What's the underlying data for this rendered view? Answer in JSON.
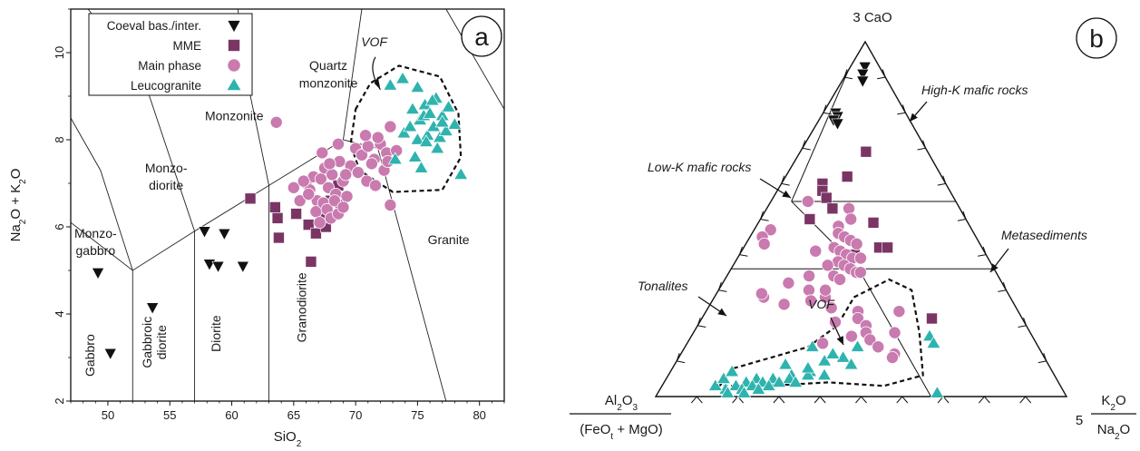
{
  "chart_data": [
    {
      "type": "scatter",
      "panel_label": "a",
      "xlabel_main": "SiO",
      "xlabel_sub": "2",
      "ylabel_parts": [
        "Na",
        "2",
        "O + K",
        "2",
        "O"
      ],
      "xlim": [
        47,
        82
      ],
      "ylim": [
        2,
        11
      ],
      "xticks": [
        50,
        55,
        60,
        65,
        70,
        75,
        80
      ],
      "yticks": [
        2,
        4,
        6,
        8,
        10
      ],
      "legend_position": "top-left",
      "legend": [
        {
          "name": "Coeval bas./inter.",
          "marker": "triangle-down"
        },
        {
          "name": "MME",
          "marker": "square"
        },
        {
          "name": "Main phase",
          "marker": "circle"
        },
        {
          "name": "Leucogranite",
          "marker": "triangle-up"
        }
      ],
      "colors": {
        "Coeval bas./inter.": "#111111",
        "MME": "#7a3565",
        "Main phase": "#c97aaf",
        "Leucogranite": "#2fb3ae"
      },
      "field_labels": [
        {
          "text": "Monzonite",
          "x": 60.2,
          "y": 8.45
        },
        {
          "text": "Quartz",
          "x": 67.8,
          "y": 9.6
        },
        {
          "text": "monzonite",
          "x": 67.8,
          "y": 9.2
        },
        {
          "text": "Monzo-",
          "x": 54.7,
          "y": 7.25
        },
        {
          "text": "diorite",
          "x": 54.7,
          "y": 6.85
        },
        {
          "text": "Monzo-",
          "x": 49.0,
          "y": 5.75
        },
        {
          "text": "gabbro",
          "x": 49.0,
          "y": 5.35
        },
        {
          "text": "Granite",
          "x": 77.5,
          "y": 5.6
        },
        {
          "text": "VOF",
          "x": 71.5,
          "y": 10.15,
          "italic": true
        }
      ],
      "rotated_labels": [
        {
          "text": "Gabbro",
          "x": 48.9,
          "y": 3.05
        },
        {
          "text": "Gabbroic",
          "x": 53.5,
          "y": 3.35
        },
        {
          "text": "diorite",
          "x": 54.7,
          "y": 3.35
        },
        {
          "text": "Diorite",
          "x": 59.1,
          "y": 3.55
        },
        {
          "text": "Granodiorite",
          "x": 66.0,
          "y": 4.15
        }
      ],
      "field_boundaries": [
        [
          [
            47,
            6.1
          ],
          [
            52,
            5.0
          ],
          [
            57,
            5.9
          ],
          [
            63,
            6.95
          ],
          [
            69,
            8.0
          ]
        ],
        [
          [
            52,
            2
          ],
          [
            52,
            5.0
          ]
        ],
        [
          [
            57,
            2
          ],
          [
            57,
            5.9
          ]
        ],
        [
          [
            63,
            2
          ],
          [
            63,
            6.95
          ]
        ],
        [
          [
            52,
            5.0
          ],
          [
            49.4,
            7.3
          ],
          [
            47,
            8.5
          ]
        ],
        [
          [
            57,
            5.9
          ],
          [
            53,
            9.3
          ],
          [
            48.4,
            11
          ]
        ],
        [
          [
            63,
            6.95
          ],
          [
            61,
            9.7
          ],
          [
            60.5,
            11
          ]
        ],
        [
          [
            69,
            8.0
          ],
          [
            70.5,
            11
          ]
        ],
        [
          [
            69,
            8.0
          ],
          [
            71.8,
            7.8
          ],
          [
            77.3,
            2
          ]
        ],
        [
          [
            77.3,
            11
          ],
          [
            82,
            8.7
          ]
        ]
      ],
      "series": [
        {
          "name": "Coeval bas./inter.",
          "marker": "triangle-down",
          "x": [
            49.2,
            50.2,
            53.6,
            57.8,
            58.2,
            58.9,
            59.4,
            60.9
          ],
          "y": [
            4.95,
            3.1,
            4.15,
            5.9,
            5.15,
            5.1,
            5.85,
            5.1
          ]
        },
        {
          "name": "MME",
          "marker": "square",
          "x": [
            61.5,
            63.5,
            63.7,
            63.8,
            65.2,
            66.2,
            66.4,
            66.8,
            67.3,
            67.6,
            68.0,
            68.6,
            68.8,
            67.0
          ],
          "y": [
            6.65,
            6.45,
            6.2,
            5.75,
            6.3,
            6.05,
            5.2,
            5.85,
            6.3,
            6.0,
            6.6,
            6.95,
            6.5,
            6.5
          ]
        },
        {
          "name": "Main phase",
          "marker": "circle",
          "x": [
            63.6,
            65.0,
            65.5,
            66.0,
            66.3,
            66.6,
            66.9,
            67.2,
            67.5,
            67.8,
            68.1,
            68.4,
            68.7,
            69.0,
            69.3,
            66.8,
            67.1,
            67.4,
            67.7,
            68.0,
            68.3,
            68.6,
            69.0,
            69.6,
            70.0,
            70.5,
            71.0,
            71.5,
            72.0,
            72.5,
            70.2,
            70.8,
            71.3,
            71.8,
            72.3,
            72.8,
            73.3,
            70.9,
            71.6,
            72.6,
            67.3,
            67.9,
            68.6,
            69.2,
            66.2,
            65.8,
            72.8
          ],
          "y": [
            8.4,
            6.9,
            6.6,
            7.0,
            6.85,
            7.15,
            6.6,
            7.1,
            7.35,
            6.9,
            7.2,
            6.75,
            7.5,
            7.05,
            6.7,
            6.35,
            6.1,
            6.55,
            6.4,
            6.2,
            6.6,
            6.3,
            6.45,
            7.4,
            7.8,
            7.65,
            7.85,
            7.55,
            7.9,
            7.7,
            7.25,
            8.1,
            7.45,
            8.05,
            7.3,
            8.3,
            7.75,
            7.05,
            6.95,
            7.5,
            7.7,
            7.45,
            7.9,
            7.2,
            6.75,
            7.05,
            6.5
          ]
        },
        {
          "name": "Leucogranite",
          "marker": "triangle-up",
          "x": [
            73.8,
            75.0,
            75.6,
            76.0,
            76.5,
            77.0,
            77.5,
            78.0,
            75.2,
            75.8,
            76.3,
            76.8,
            77.3,
            74.6,
            75.5,
            76.2,
            77.0,
            73.9,
            74.4,
            75.0,
            75.7,
            76.6,
            74.8,
            75.3,
            78.5,
            73.2,
            72.8,
            76.0
          ],
          "y": [
            9.4,
            9.2,
            8.8,
            8.6,
            8.95,
            8.55,
            8.75,
            8.35,
            8.45,
            8.1,
            8.3,
            8.05,
            8.2,
            8.7,
            8.55,
            8.9,
            8.4,
            8.15,
            8.3,
            8.0,
            7.95,
            7.8,
            7.6,
            7.35,
            7.2,
            7.55,
            9.25,
            8.6
          ]
        }
      ]
    },
    {
      "type": "ternary-scatter",
      "panel_label": "b",
      "apex_top": "3 CaO",
      "apex_right_prefix": "5",
      "apex_right_num": "K",
      "apex_right_num_sub": "2",
      "apex_right_num_tail": "O",
      "apex_right_den": "Na",
      "apex_right_den_sub": "2",
      "apex_right_den_tail": "O",
      "apex_left_num": "Al",
      "apex_left_num_sub1": "2",
      "apex_left_num_mid": "O",
      "apex_left_num_sub2": "3",
      "apex_left_den": "(FeO",
      "apex_left_den_sub": "t",
      "apex_left_den_tail": " + MgO)",
      "field_labels": [
        {
          "text": "High-K mafic rocks",
          "italic": true
        },
        {
          "text": "Low-K mafic rocks",
          "italic": true
        },
        {
          "text": "Metasediments",
          "italic": true
        },
        {
          "text": "Tonalites",
          "italic": true
        },
        {
          "text": "VOF",
          "italic": true
        }
      ],
      "series": [
        {
          "name": "Coeval bas./inter.",
          "marker": "triangle-down",
          "CaO": [
            0.93,
            0.91,
            0.89,
            0.8,
            0.79,
            0.78,
            0.77
          ],
          "K": [
            0.035,
            0.04,
            0.05,
            0.03,
            0.04,
            0.035,
            0.05
          ]
        },
        {
          "name": "MME",
          "marker": "square",
          "CaO": [
            0.69,
            0.62,
            0.6,
            0.58,
            0.56,
            0.53,
            0.5,
            0.49,
            0.42,
            0.42,
            0.4,
            0.22
          ],
          "K": [
            0.16,
            0.15,
            0.1,
            0.11,
            0.13,
            0.16,
            0.12,
            0.28,
            0.33,
            0.35,
            0.28,
            0.56
          ]
        },
        {
          "name": "Main phase",
          "marker": "circle",
          "CaO": [
            0.55,
            0.53,
            0.5,
            0.48,
            0.46,
            0.45,
            0.44,
            0.43,
            0.42,
            0.41,
            0.4,
            0.39,
            0.38,
            0.37,
            0.36,
            0.35,
            0.34,
            0.33,
            0.47,
            0.45,
            0.43,
            0.41,
            0.39,
            0.37,
            0.35,
            0.34,
            0.32,
            0.3,
            0.28,
            0.26,
            0.24,
            0.22,
            0.2,
            0.18,
            0.16,
            0.24,
            0.21,
            0.18,
            0.15,
            0.12,
            0.28,
            0.25,
            0.3,
            0.27,
            0.29,
            0.17,
            0.14,
            0.11
          ],
          "K": [
            0.09,
            0.2,
            0.22,
            0.2,
            0.21,
            0.23,
            0.25,
            0.27,
            0.22,
            0.24,
            0.26,
            0.28,
            0.25,
            0.27,
            0.29,
            0.31,
            0.26,
            0.28,
            0.04,
            0.03,
            0.045,
            0.18,
            0.3,
            0.23,
            0.32,
            0.2,
            0.16,
            0.22,
            0.27,
            0.18,
            0.37,
            0.38,
            0.41,
            0.42,
            0.44,
            0.47,
            0.33,
            0.49,
            0.33,
            0.52,
            0.12,
            0.3,
            0.26,
            0.24,
            0.11,
            0.39,
            0.47,
            0.52
          ]
        },
        {
          "name": "Leucogranite",
          "marker": "triangle-up",
          "CaO": [
            0.14,
            0.11,
            0.09,
            0.06,
            0.05,
            0.04,
            0.03,
            0.02,
            0.01,
            0.05,
            0.04,
            0.03,
            0.02,
            0.06,
            0.07,
            0.05,
            0.04,
            0.03,
            0.02,
            0.01,
            0.04,
            0.06,
            0.08,
            0.1,
            0.12,
            0.14,
            0.17,
            0.15,
            0.01,
            0.03,
            0.05,
            0.07,
            0.09
          ],
          "K": [
            0.42,
            0.4,
            0.43,
            0.3,
            0.22,
            0.2,
            0.18,
            0.16,
            0.17,
            0.26,
            0.24,
            0.22,
            0.2,
            0.38,
            0.34,
            0.3,
            0.28,
            0.26,
            0.24,
            0.21,
            0.32,
            0.34,
            0.33,
            0.36,
            0.37,
            0.31,
            0.58,
            0.6,
            0.68,
            0.13,
            0.14,
            0.15,
            0.27
          ]
        }
      ]
    }
  ]
}
